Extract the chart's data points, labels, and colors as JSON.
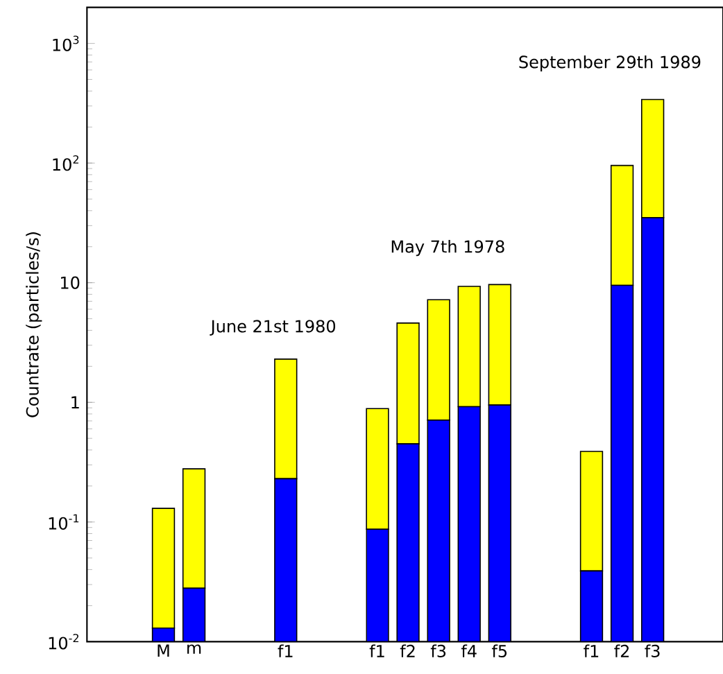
{
  "chart_data": {
    "type": "bar",
    "ylabel": "Countrate (particles/s)",
    "log": "y",
    "stacked": true,
    "categories": [
      "M",
      "m",
      null,
      null,
      "f1",
      null,
      null,
      "f1",
      "f2",
      "f3",
      "f4",
      "f5",
      null,
      null,
      "f1",
      "f2",
      "f3"
    ],
    "series": [
      {
        "color": "#0000ff",
        "values": [
          0.013,
          0.028,
          null,
          null,
          0.23,
          null,
          null,
          0.087,
          0.45,
          0.71,
          0.92,
          0.95,
          null,
          null,
          0.039,
          9.5,
          35
        ]
      },
      {
        "color": "#ffff00",
        "values": [
          0.117,
          0.25,
          null,
          null,
          2.07,
          null,
          null,
          0.8,
          4.15,
          6.5,
          8.4,
          8.7,
          null,
          null,
          0.35,
          86,
          305
        ]
      }
    ],
    "ylim": [
      0.01,
      2000
    ],
    "yticks": [
      {
        "value": 0.01,
        "label": "10$^{-2}$"
      },
      {
        "value": 0.1,
        "label": "10$^{-1}$"
      },
      1,
      10,
      {
        "value": 100,
        "label": "10$^{2}$"
      },
      {
        "value": 1000,
        "label": "10$^{3}$"
      }
    ],
    "annotations": [
      "June 21st 1980",
      "May 7th 1978",
      "September 29th 1989"
    ]
  }
}
